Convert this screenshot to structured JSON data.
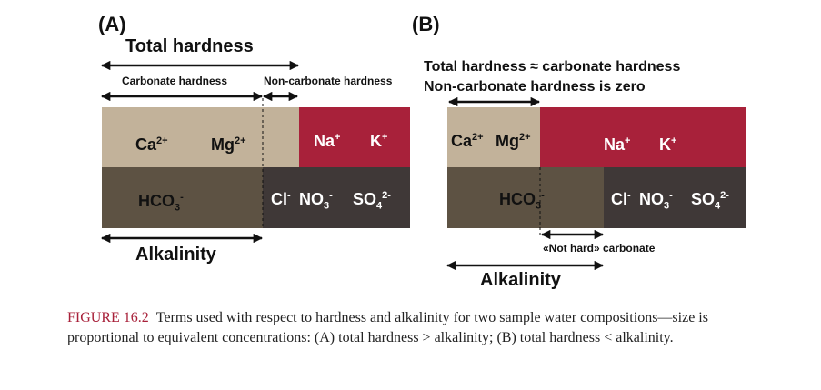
{
  "panel_a": {
    "label": "(A)",
    "total_hardness": "Total hardness",
    "carbonate_hardness": "Carbonate hardness",
    "non_carbonate_hardness": "Non-carbonate hardness",
    "ions": {
      "ca": "Ca",
      "ca_sup": "2+",
      "mg": "Mg",
      "mg_sup": "2+",
      "na": "Na",
      "na_sup": "+",
      "k": "K",
      "k_sup": "+",
      "hco": "HCO",
      "hco_sub": "3",
      "hco_sup": "-",
      "cl": "Cl",
      "cl_sup": "-",
      "no": "NO",
      "no_sub": "3",
      "no_sup": "-",
      "so": "SO",
      "so_sub": "4",
      "so_sup": "2-"
    },
    "alkalinity": "Alkalinity"
  },
  "panel_b": {
    "label": "(B)",
    "line1": "Total hardness ≈ carbonate hardness",
    "line2": "Non-carbonate hardness is zero",
    "ions": {
      "ca": "Ca",
      "ca_sup": "2+",
      "mg": "Mg",
      "mg_sup": "2+",
      "na": "Na",
      "na_sup": "+",
      "k": "K",
      "k_sup": "+",
      "hco": "HCO",
      "hco_sub": "3",
      "hco_sup": "-",
      "cl": "Cl",
      "cl_sup": "-",
      "no": "NO",
      "no_sub": "3",
      "no_sup": "-",
      "so": "SO",
      "so_sub": "4",
      "so_sup": "2-"
    },
    "not_hard": "«Not hard» carbonate",
    "alkalinity": "Alkalinity"
  },
  "caption": {
    "label": "FIGURE 16.2",
    "text": "Terms used with respect to hardness and alkalinity for two sample water compositions—size is proportional to equivalent concentrations: (A) total hardness > alkalinity; (B) total hardness < alkalinity."
  },
  "colors": {
    "calcium_magnesium": "#c2b29a",
    "sodium_potassium": "#a8213a",
    "bicarbonate": "#5d5243",
    "other_anions": "#3f3837",
    "caption_label": "#a8213a"
  }
}
